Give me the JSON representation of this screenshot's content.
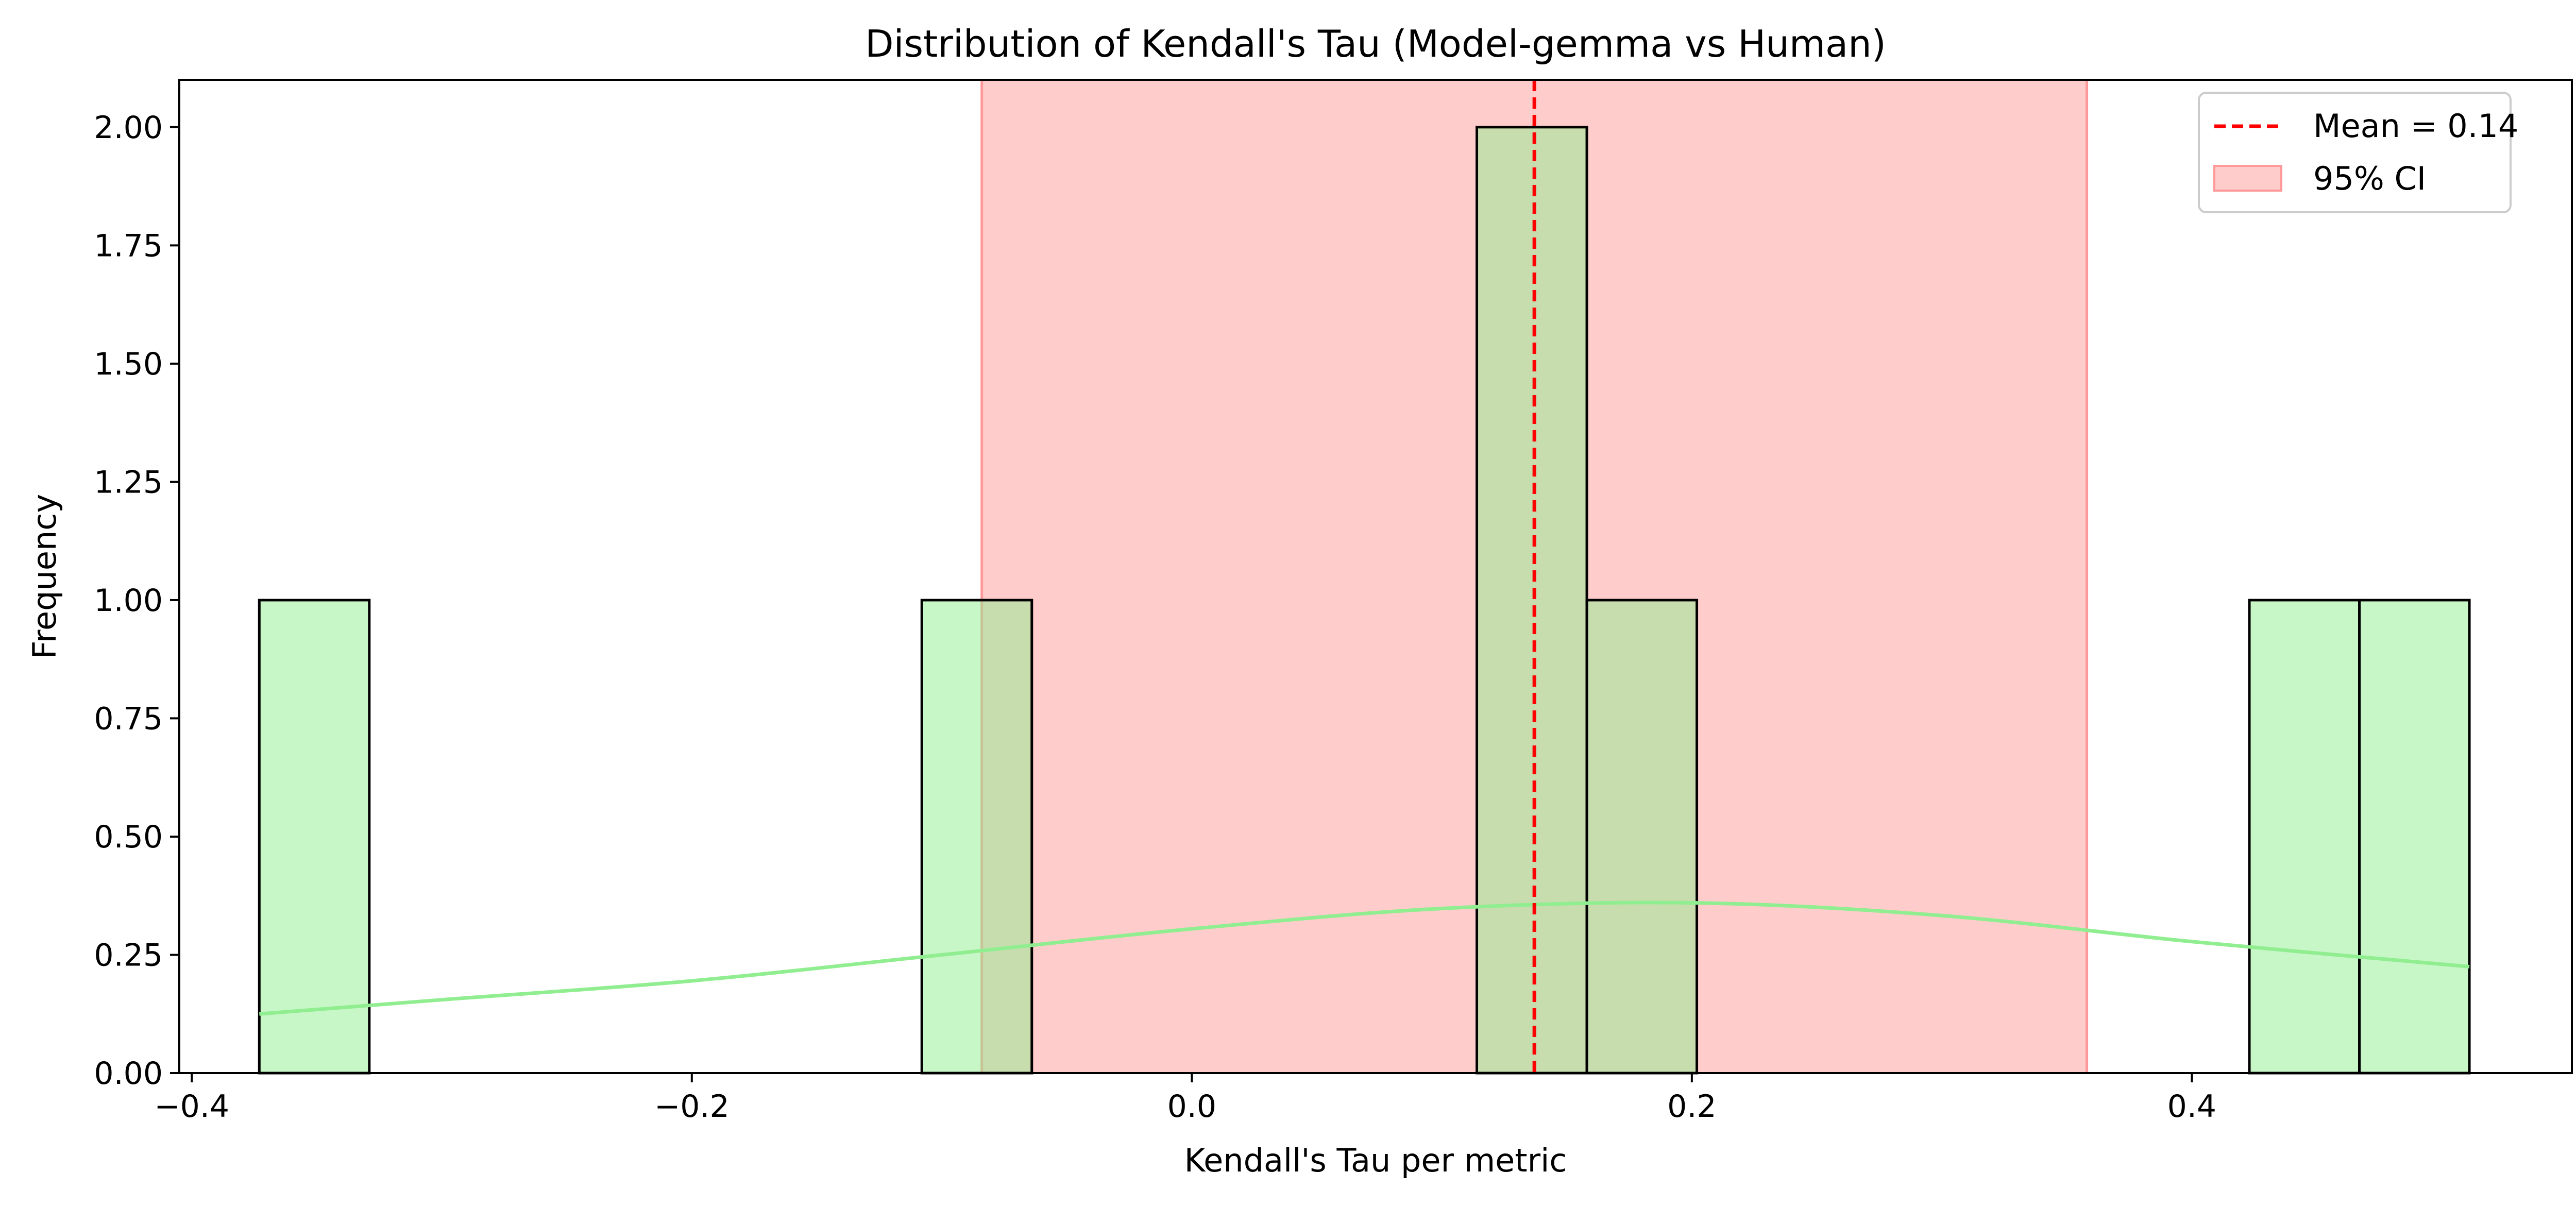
{
  "chart_data": {
    "type": "histogram",
    "title": "Distribution of Kendall's Tau (Model-gemma vs Human)",
    "xlabel": "Kendall's Tau per metric",
    "ylabel": "Frequency",
    "xlim": [
      -0.405,
      0.552
    ],
    "ylim": [
      0,
      2.1
    ],
    "xticks": [
      -0.4,
      -0.2,
      0.0,
      0.2,
      0.4
    ],
    "xtick_labels": [
      "−0.4",
      "−0.2",
      "0.0",
      "0.2",
      "0.4"
    ],
    "yticks": [
      0,
      0.25,
      0.5,
      0.75,
      1.0,
      1.25,
      1.5,
      1.75,
      2.0
    ],
    "ytick_labels": [
      "0.00",
      "0.25",
      "0.50",
      "0.75",
      "1.00",
      "1.25",
      "1.50",
      "1.75",
      "2.00"
    ],
    "bins": [
      {
        "x0": -0.373,
        "x1": -0.329,
        "count": 1
      },
      {
        "x0": -0.108,
        "x1": -0.064,
        "count": 1
      },
      {
        "x0": 0.114,
        "x1": 0.158,
        "count": 2
      },
      {
        "x0": 0.158,
        "x1": 0.202,
        "count": 1
      },
      {
        "x0": 0.423,
        "x1": 0.467,
        "count": 1
      },
      {
        "x0": 0.467,
        "x1": 0.511,
        "count": 1
      }
    ],
    "bar_color": "#90ee90",
    "kde": {
      "x": [
        -0.373,
        -0.3,
        -0.2,
        -0.1,
        0.0,
        0.1,
        0.2,
        0.3,
        0.4,
        0.511
      ],
      "y": [
        0.125,
        0.155,
        0.195,
        0.25,
        0.305,
        0.348,
        0.36,
        0.333,
        0.278,
        0.225
      ],
      "color": "#90ee90"
    },
    "mean": {
      "value": 0.137,
      "label": "Mean = 0.14",
      "color": "#ff0000"
    },
    "ci": {
      "low": -0.084,
      "high": 0.358,
      "label": "95% CI",
      "color": "#ff9999"
    },
    "legend_position": "top-right"
  }
}
